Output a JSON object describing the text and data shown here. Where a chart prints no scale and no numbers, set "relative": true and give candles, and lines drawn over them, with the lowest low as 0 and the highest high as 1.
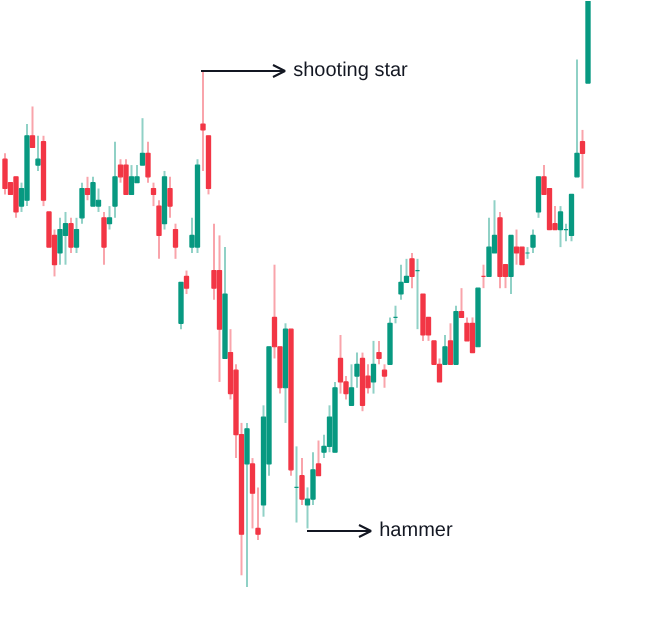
{
  "chart_data": {
    "type": "candlestick",
    "relative": true,
    "categories": [
      null,
      null,
      null,
      null,
      null,
      null,
      null,
      null,
      null,
      null,
      null,
      null,
      null,
      null,
      null,
      null,
      null,
      null,
      null,
      null,
      null,
      null,
      null,
      null,
      null,
      null,
      null,
      null,
      null,
      null,
      null,
      null,
      null,
      null,
      null,
      null,
      null,
      null,
      null,
      null,
      null,
      null,
      null,
      null,
      null,
      null,
      null,
      null,
      null,
      null,
      null,
      null,
      null,
      null,
      null,
      null,
      null,
      null,
      null,
      null,
      null,
      null,
      null,
      null,
      null,
      null,
      null,
      null,
      null,
      null,
      null,
      null,
      null,
      null,
      null,
      null,
      null,
      null,
      null,
      null,
      null,
      null,
      null,
      null,
      null,
      null,
      null,
      null,
      null,
      null,
      null,
      null,
      null,
      null,
      null,
      null,
      null,
      null,
      null,
      null,
      null,
      null,
      null,
      null,
      null,
      null,
      null
    ],
    "ohlc": [
      [
        0.73,
        0.74,
        0.67,
        0.68
      ],
      [
        0.69,
        0.69,
        0.67,
        0.67
      ],
      [
        0.7,
        0.7,
        0.63,
        0.64
      ],
      [
        0.65,
        0.69,
        0.64,
        0.68
      ],
      [
        0.66,
        0.79,
        0.65,
        0.77
      ],
      [
        0.77,
        0.82,
        0.75,
        0.75
      ],
      [
        0.72,
        0.77,
        0.71,
        0.73
      ],
      [
        0.76,
        0.77,
        0.65,
        0.66
      ],
      [
        0.64,
        0.64,
        0.58,
        0.58
      ],
      [
        0.6,
        0.61,
        0.53,
        0.55
      ],
      [
        0.57,
        0.63,
        0.55,
        0.61
      ],
      [
        0.6,
        0.64,
        0.55,
        0.62
      ],
      [
        0.62,
        0.63,
        0.57,
        0.58
      ],
      [
        0.58,
        0.63,
        0.57,
        0.61
      ],
      [
        0.63,
        0.69,
        0.62,
        0.68
      ],
      [
        0.68,
        0.7,
        0.66,
        0.67
      ],
      [
        0.65,
        0.7,
        0.65,
        0.69
      ],
      [
        0.65,
        0.68,
        0.64,
        0.66
      ],
      [
        0.63,
        0.64,
        0.55,
        0.58
      ],
      [
        0.62,
        0.65,
        0.61,
        0.63
      ],
      [
        0.65,
        0.76,
        0.63,
        0.7
      ],
      [
        0.72,
        0.73,
        0.69,
        0.7
      ],
      [
        0.72,
        0.73,
        0.67,
        0.67
      ],
      [
        0.67,
        0.72,
        0.67,
        0.7
      ],
      [
        0.69,
        0.72,
        0.69,
        0.7
      ],
      [
        0.72,
        0.8,
        0.72,
        0.74
      ],
      [
        0.74,
        0.76,
        0.69,
        0.7
      ],
      [
        0.68,
        0.69,
        0.65,
        0.67
      ],
      [
        0.65,
        0.66,
        0.56,
        0.6
      ],
      [
        0.62,
        0.71,
        0.61,
        0.7
      ],
      [
        0.68,
        0.7,
        0.63,
        0.65
      ],
      [
        0.61,
        0.62,
        0.56,
        0.58
      ],
      [
        0.45,
        0.52,
        0.44,
        0.52
      ],
      [
        0.53,
        0.54,
        0.5,
        0.51
      ],
      [
        0.58,
        0.63,
        0.57,
        0.6
      ],
      [
        0.58,
        0.73,
        0.57,
        0.72
      ],
      [
        0.79,
        0.88,
        0.71,
        0.78
      ],
      [
        0.77,
        0.77,
        0.67,
        0.68
      ],
      [
        0.54,
        0.62,
        0.49,
        0.51
      ],
      [
        0.54,
        0.6,
        0.35,
        0.44
      ],
      [
        0.39,
        0.58,
        0.39,
        0.5
      ],
      [
        0.4,
        0.44,
        0.32,
        0.33
      ],
      [
        0.37,
        0.38,
        0.22,
        0.26
      ],
      [
        0.26,
        0.28,
        0.02,
        0.09
      ],
      [
        0.21,
        0.28,
        0.0,
        0.27
      ],
      [
        0.21,
        0.22,
        0.1,
        0.16
      ],
      [
        0.1,
        0.17,
        0.08,
        0.09
      ],
      [
        0.14,
        0.31,
        0.12,
        0.29
      ],
      [
        0.21,
        0.41,
        0.19,
        0.41
      ],
      [
        0.46,
        0.55,
        0.39,
        0.41
      ],
      [
        0.41,
        0.41,
        0.33,
        0.34
      ],
      [
        0.34,
        0.45,
        0.28,
        0.44
      ],
      [
        0.44,
        0.44,
        0.19,
        0.2
      ],
      [
        0.17,
        0.24,
        0.11,
        0.17
      ],
      [
        0.19,
        0.22,
        0.14,
        0.15
      ],
      [
        0.14,
        0.17,
        0.1,
        0.15
      ],
      [
        0.15,
        0.23,
        0.14,
        0.2
      ],
      [
        0.21,
        0.25,
        0.19,
        0.19
      ],
      [
        0.23,
        0.26,
        0.22,
        0.24
      ],
      [
        0.24,
        0.31,
        0.23,
        0.29
      ],
      [
        0.23,
        0.35,
        0.23,
        0.34
      ],
      [
        0.39,
        0.43,
        0.33,
        0.35
      ],
      [
        0.35,
        0.36,
        0.32,
        0.33
      ],
      [
        0.31,
        0.38,
        0.31,
        0.34
      ],
      [
        0.36,
        0.4,
        0.34,
        0.38
      ],
      [
        0.39,
        0.4,
        0.3,
        0.31
      ],
      [
        0.36,
        0.38,
        0.33,
        0.34
      ],
      [
        0.35,
        0.42,
        0.33,
        0.38
      ],
      [
        0.4,
        0.42,
        0.38,
        0.39
      ],
      [
        0.37,
        0.38,
        0.34,
        0.36
      ],
      [
        0.38,
        0.46,
        0.38,
        0.45
      ],
      [
        0.46,
        0.48,
        0.45,
        0.46
      ],
      [
        0.5,
        0.55,
        0.49,
        0.52
      ],
      [
        0.52,
        0.56,
        0.52,
        0.53
      ],
      [
        0.56,
        0.57,
        0.51,
        0.53
      ],
      [
        0.54,
        0.56,
        0.44,
        0.54
      ],
      [
        0.5,
        0.5,
        0.42,
        0.43
      ],
      [
        0.46,
        0.46,
        0.42,
        0.43
      ],
      [
        0.42,
        0.42,
        0.38,
        0.38
      ],
      [
        0.38,
        0.39,
        0.35,
        0.35
      ],
      [
        0.38,
        0.43,
        0.38,
        0.41
      ],
      [
        0.42,
        0.45,
        0.38,
        0.38
      ],
      [
        0.38,
        0.48,
        0.38,
        0.47
      ],
      [
        0.47,
        0.51,
        0.46,
        0.46
      ],
      [
        0.45,
        0.46,
        0.42,
        0.42
      ],
      [
        0.45,
        0.46,
        0.4,
        0.4
      ],
      [
        0.41,
        0.51,
        0.41,
        0.51
      ],
      [
        0.53,
        0.55,
        0.51,
        0.53
      ],
      [
        0.53,
        0.63,
        0.53,
        0.58
      ],
      [
        0.57,
        0.66,
        0.57,
        0.6
      ],
      [
        0.63,
        0.64,
        0.51,
        0.53
      ],
      [
        0.55,
        0.55,
        0.51,
        0.53
      ],
      [
        0.53,
        0.6,
        0.5,
        0.6
      ],
      [
        0.58,
        0.61,
        0.55,
        0.57
      ],
      [
        0.58,
        0.58,
        0.55,
        0.55
      ],
      [
        0.57,
        0.58,
        0.56,
        0.57
      ],
      [
        0.58,
        0.61,
        0.57,
        0.6
      ],
      [
        0.64,
        0.7,
        0.63,
        0.7
      ],
      [
        0.7,
        0.72,
        0.67,
        0.67
      ],
      [
        0.68,
        0.68,
        0.61,
        0.61
      ],
      [
        0.62,
        0.65,
        0.61,
        0.61
      ],
      [
        0.61,
        0.65,
        0.58,
        0.64
      ],
      [
        0.61,
        0.62,
        0.59,
        0.61
      ],
      [
        0.6,
        0.67,
        0.59,
        0.67
      ],
      [
        0.7,
        0.9,
        0.7,
        0.74
      ],
      [
        0.76,
        0.78,
        0.68,
        0.74
      ],
      [
        0.86,
        1.0,
        0.86,
        1.0
      ]
    ],
    "colors": [
      "#f23645",
      "#f23645",
      "#f23645",
      "#089981",
      "#089981",
      "#f23645",
      "#089981",
      "#f23645",
      "#f23645",
      "#f23645",
      "#089981",
      "#089981",
      "#f23645",
      "#089981",
      "#089981",
      "#f23645",
      "#089981",
      "#089981",
      "#f23645",
      "#089981",
      "#089981",
      "#f23645",
      "#f23645",
      "#089981",
      "#089981",
      "#089981",
      "#f23645",
      "#f23645",
      "#f23645",
      "#089981",
      "#f23645",
      "#f23645",
      "#089981",
      "#f23645",
      "#089981",
      "#089981",
      "#f23645",
      "#f23645",
      "#f23645",
      "#f23645",
      "#089981",
      "#f23645",
      "#f23645",
      "#f23645",
      "#089981",
      "#f23645",
      "#f23645",
      "#089981",
      "#089981",
      "#f23645",
      "#f23645",
      "#089981",
      "#f23645",
      "#089981",
      "#f23645",
      "#089981",
      "#089981",
      "#f23645",
      "#089981",
      "#089981",
      "#089981",
      "#f23645",
      "#f23645",
      "#089981",
      "#089981",
      "#f23645",
      "#f23645",
      "#089981",
      "#f23645",
      "#f23645",
      "#089981",
      "#089981",
      "#089981",
      "#089981",
      "#f23645",
      "#089981",
      "#f23645",
      "#f23645",
      "#f23645",
      "#f23645",
      "#089981",
      "#f23645",
      "#089981",
      "#f23645",
      "#f23645",
      "#f23645",
      "#089981",
      "#f23645",
      "#089981",
      "#089981",
      "#f23645",
      "#f23645",
      "#089981",
      "#f23645",
      "#f23645",
      "#089981",
      "#089981",
      "#089981",
      "#f23645",
      "#f23645",
      "#f23645",
      "#089981",
      "#089981",
      "#089981",
      "#089981",
      "#f23645",
      "#089981"
    ],
    "annotations": [
      "shooting star",
      "hammer"
    ]
  }
}
